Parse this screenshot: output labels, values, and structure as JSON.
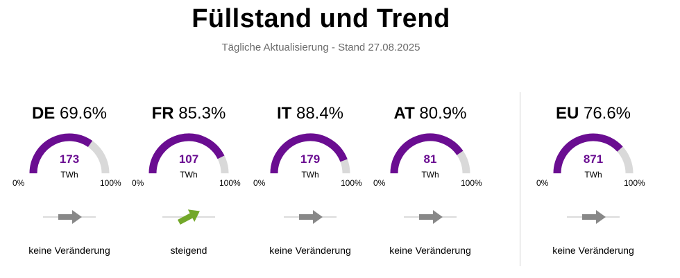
{
  "header": {
    "title": "Füllstand und Trend",
    "subtitle": "Tägliche Aktualisierung - Stand 27.08.2025"
  },
  "scale": {
    "min_label": "0%",
    "max_label": "100%"
  },
  "colors": {
    "fill": "#6a0d91",
    "track": "#d9d9d9",
    "trend_flat": "#888888",
    "trend_up": "#73a82a"
  },
  "countries": [
    {
      "code": "DE",
      "percent": "69.6%",
      "fill_level": 0.696,
      "twh": "173",
      "unit": "TWh",
      "trend": "flat",
      "trend_label": "keine Veränderung"
    },
    {
      "code": "FR",
      "percent": "85.3%",
      "fill_level": 0.853,
      "twh": "107",
      "unit": "TWh",
      "trend": "up",
      "trend_label": "steigend"
    },
    {
      "code": "IT",
      "percent": "88.4%",
      "fill_level": 0.884,
      "twh": "179",
      "unit": "TWh",
      "trend": "flat",
      "trend_label": "keine Veränderung"
    },
    {
      "code": "AT",
      "percent": "80.9%",
      "fill_level": 0.809,
      "twh": "81",
      "unit": "TWh",
      "trend": "flat",
      "trend_label": "keine Veränderung"
    },
    {
      "code": "EU",
      "percent": "76.6%",
      "fill_level": 0.766,
      "twh": "871",
      "unit": "TWh",
      "trend": "flat",
      "trend_label": "keine Veränderung"
    }
  ]
}
